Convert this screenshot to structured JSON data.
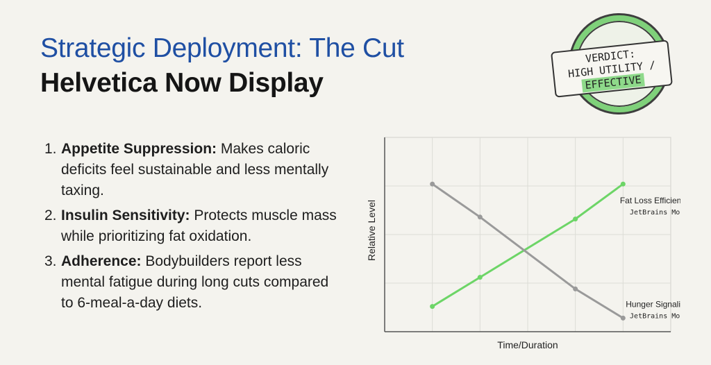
{
  "title": "Strategic Deployment: The Cut",
  "subtitle": "Helvetica Now Display",
  "points": [
    {
      "num": "1.",
      "head": "Appetite Suppression:",
      "text": " Makes caloric deficits feel sustainable and less mentally taxing."
    },
    {
      "num": "2.",
      "head": "Insulin Sensitivity:",
      "text": " Protects muscle mass while prioritizing fat oxidation."
    },
    {
      "num": "3.",
      "head": "Adherence:",
      "text": " Bodybuilders report less mental fatigue during long cuts compared to 6-meal-a-day diets."
    }
  ],
  "stamp": {
    "line1": "VERDICT:",
    "line2": "HIGH UTILITY /",
    "line3": "EFFECTIVE",
    "ring_color": "#7fd17a",
    "highlight_color": "#8ed98a"
  },
  "chart_data": {
    "type": "line",
    "title": "",
    "xlabel": "Time/Duration",
    "ylabel": "Relative Level",
    "xlim": [
      0,
      6
    ],
    "ylim": [
      0,
      10
    ],
    "grid": true,
    "series": [
      {
        "name": "Fat Loss Efficiency",
        "annotation": "JetBrains Mono",
        "color": "#6dd567",
        "x": [
          1,
          2,
          4,
          5
        ],
        "y": [
          1.3,
          2.8,
          5.8,
          7.6
        ]
      },
      {
        "name": "Hunger Signaling",
        "annotation": "JetBrains Mono",
        "color": "#9a9a9a",
        "x": [
          1,
          2,
          4,
          5
        ],
        "y": [
          7.6,
          5.9,
          2.2,
          0.7
        ]
      }
    ]
  }
}
